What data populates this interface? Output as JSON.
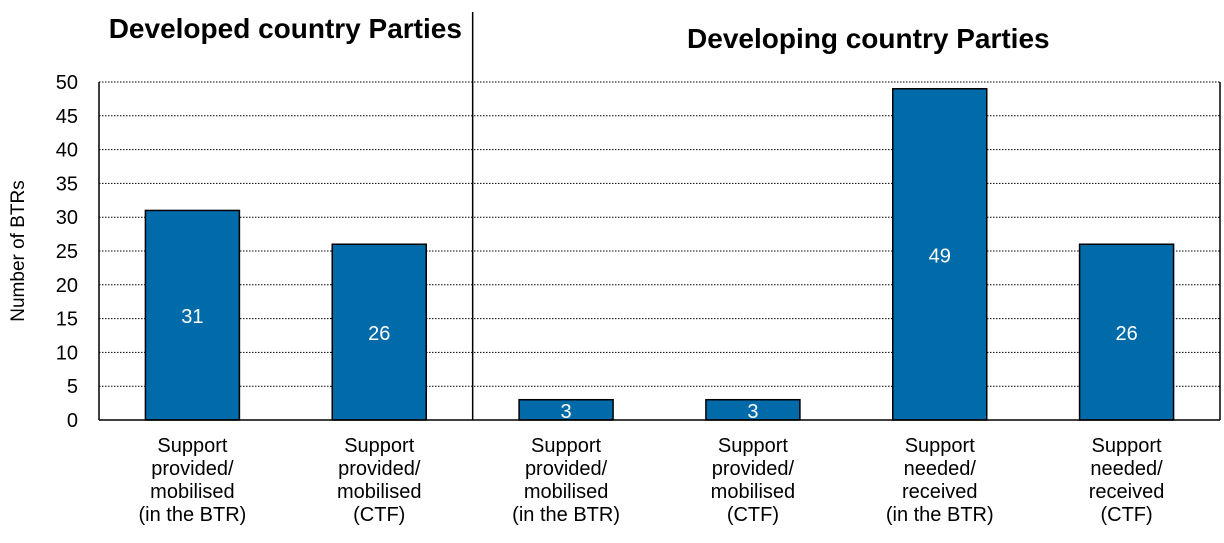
{
  "chart_data": {
    "type": "bar",
    "group_titles": [
      "Developed country Parties",
      "Developing country Parties"
    ],
    "categories": [
      [
        "Support",
        "provided/",
        "mobilised",
        "(in the BTR)"
      ],
      [
        "Support",
        "provided/",
        "mobilised",
        "(CTF)"
      ],
      [
        "Support",
        "provided/",
        "mobilised",
        "(in the BTR)"
      ],
      [
        "Support",
        "provided/",
        "mobilised",
        "(CTF)"
      ],
      [
        "Support",
        "needed/",
        "received",
        "(in the BTR)"
      ],
      [
        "Support",
        "needed/",
        "received",
        "(CTF)"
      ]
    ],
    "groups": [
      0,
      0,
      1,
      1,
      1,
      1
    ],
    "values": [
      31,
      26,
      3,
      3,
      49,
      26
    ],
    "data_labels": [
      "31",
      "26",
      "3",
      "3",
      "49",
      "26"
    ],
    "ylabel": "Number of BTRs",
    "ylim": [
      0,
      50
    ],
    "yticks": [
      0,
      5,
      10,
      15,
      20,
      25,
      30,
      35,
      40,
      45,
      50
    ],
    "grid": true,
    "bar_color": "#006BA8"
  }
}
